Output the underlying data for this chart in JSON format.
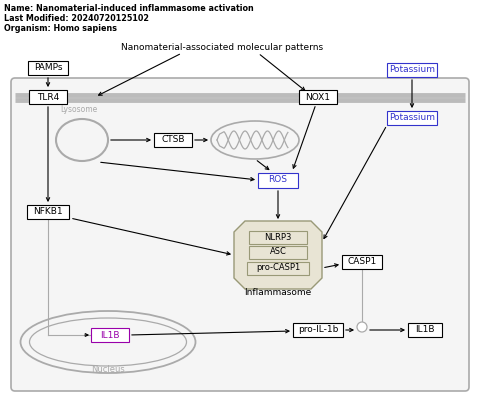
{
  "title_lines": [
    "Name: Nanomaterial-induced inflammasome activation",
    "Last Modified: 20240720125102",
    "Organism: Homo sapiens"
  ],
  "bg_color": "#ffffff",
  "cell_bg": "#f5f5f5",
  "node_bg": "#ffffff",
  "blue_border": "#3333cc",
  "purple_border": "#9900aa",
  "gray": "#aaaaaa",
  "inflammasome_bg": "#e8e4d4",
  "inflammasome_border": "#999977"
}
